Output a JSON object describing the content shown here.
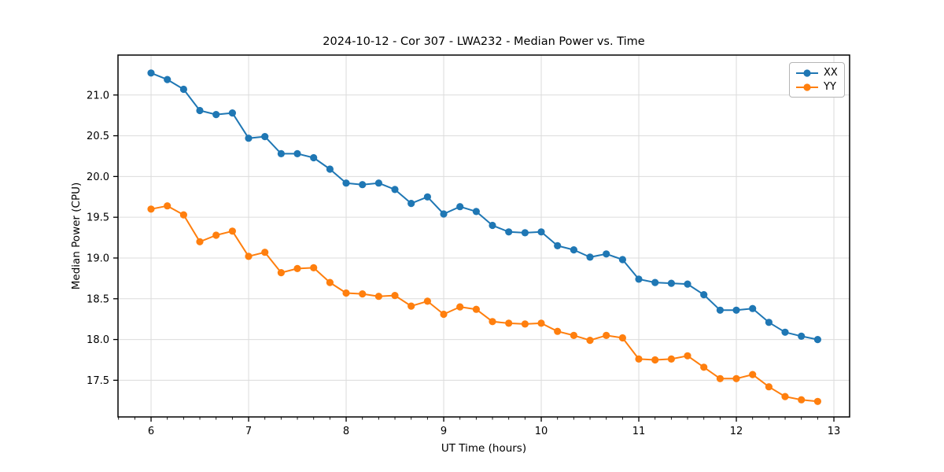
{
  "chart_data": {
    "type": "line",
    "title": "2024-10-12 - Cor 307 - LWA232 - Median Power vs. Time",
    "xlabel": "UT Time (hours)",
    "ylabel": "Median Power (CPU)",
    "xlim": [
      5.661,
      13.161
    ],
    "ylim": [
      17.05,
      21.49
    ],
    "xticks": [
      6,
      7,
      8,
      9,
      10,
      11,
      12,
      13
    ],
    "yticks": [
      17.5,
      18.0,
      18.5,
      19.0,
      19.5,
      20.0,
      20.5,
      21.0
    ],
    "x_minor_step": 0.166667,
    "grid": true,
    "grid_color": "#dcdcdc",
    "legend_position": "upper right",
    "marker": "circle",
    "x": [
      6.0,
      6.1667,
      6.3333,
      6.5,
      6.6667,
      6.8333,
      7.0,
      7.1667,
      7.3333,
      7.5,
      7.6667,
      7.8333,
      8.0,
      8.1667,
      8.3333,
      8.5,
      8.6667,
      8.8333,
      9.0,
      9.1667,
      9.3333,
      9.5,
      9.6667,
      9.8333,
      10.0,
      10.1667,
      10.3333,
      10.5,
      10.6667,
      10.8333,
      11.0,
      11.1667,
      11.3333,
      11.5,
      11.6667,
      11.8333,
      12.0,
      12.1667,
      12.3333,
      12.5,
      12.6667,
      12.8333
    ],
    "series": [
      {
        "name": "XX",
        "color": "#1f77b4",
        "values": [
          21.27,
          21.19,
          21.07,
          20.81,
          20.76,
          20.78,
          20.47,
          20.49,
          20.28,
          20.28,
          20.23,
          20.09,
          19.92,
          19.9,
          19.92,
          19.84,
          19.67,
          19.75,
          19.54,
          19.63,
          19.57,
          19.4,
          19.32,
          19.31,
          19.32,
          19.15,
          19.1,
          19.01,
          19.05,
          18.98,
          18.74,
          18.7,
          18.69,
          18.68,
          18.55,
          18.36,
          18.36,
          18.38,
          18.21,
          18.09,
          18.04,
          18.0
        ]
      },
      {
        "name": "YY",
        "color": "#ff7f0e",
        "values": [
          19.6,
          19.64,
          19.53,
          19.2,
          19.28,
          19.33,
          19.02,
          19.07,
          18.82,
          18.87,
          18.88,
          18.7,
          18.57,
          18.56,
          18.53,
          18.54,
          18.41,
          18.47,
          18.31,
          18.4,
          18.37,
          18.22,
          18.2,
          18.19,
          18.2,
          18.1,
          18.05,
          17.99,
          18.05,
          18.02,
          17.76,
          17.75,
          17.76,
          17.8,
          17.66,
          17.52,
          17.52,
          17.57,
          17.42,
          17.3,
          17.26,
          17.24
        ]
      }
    ]
  }
}
